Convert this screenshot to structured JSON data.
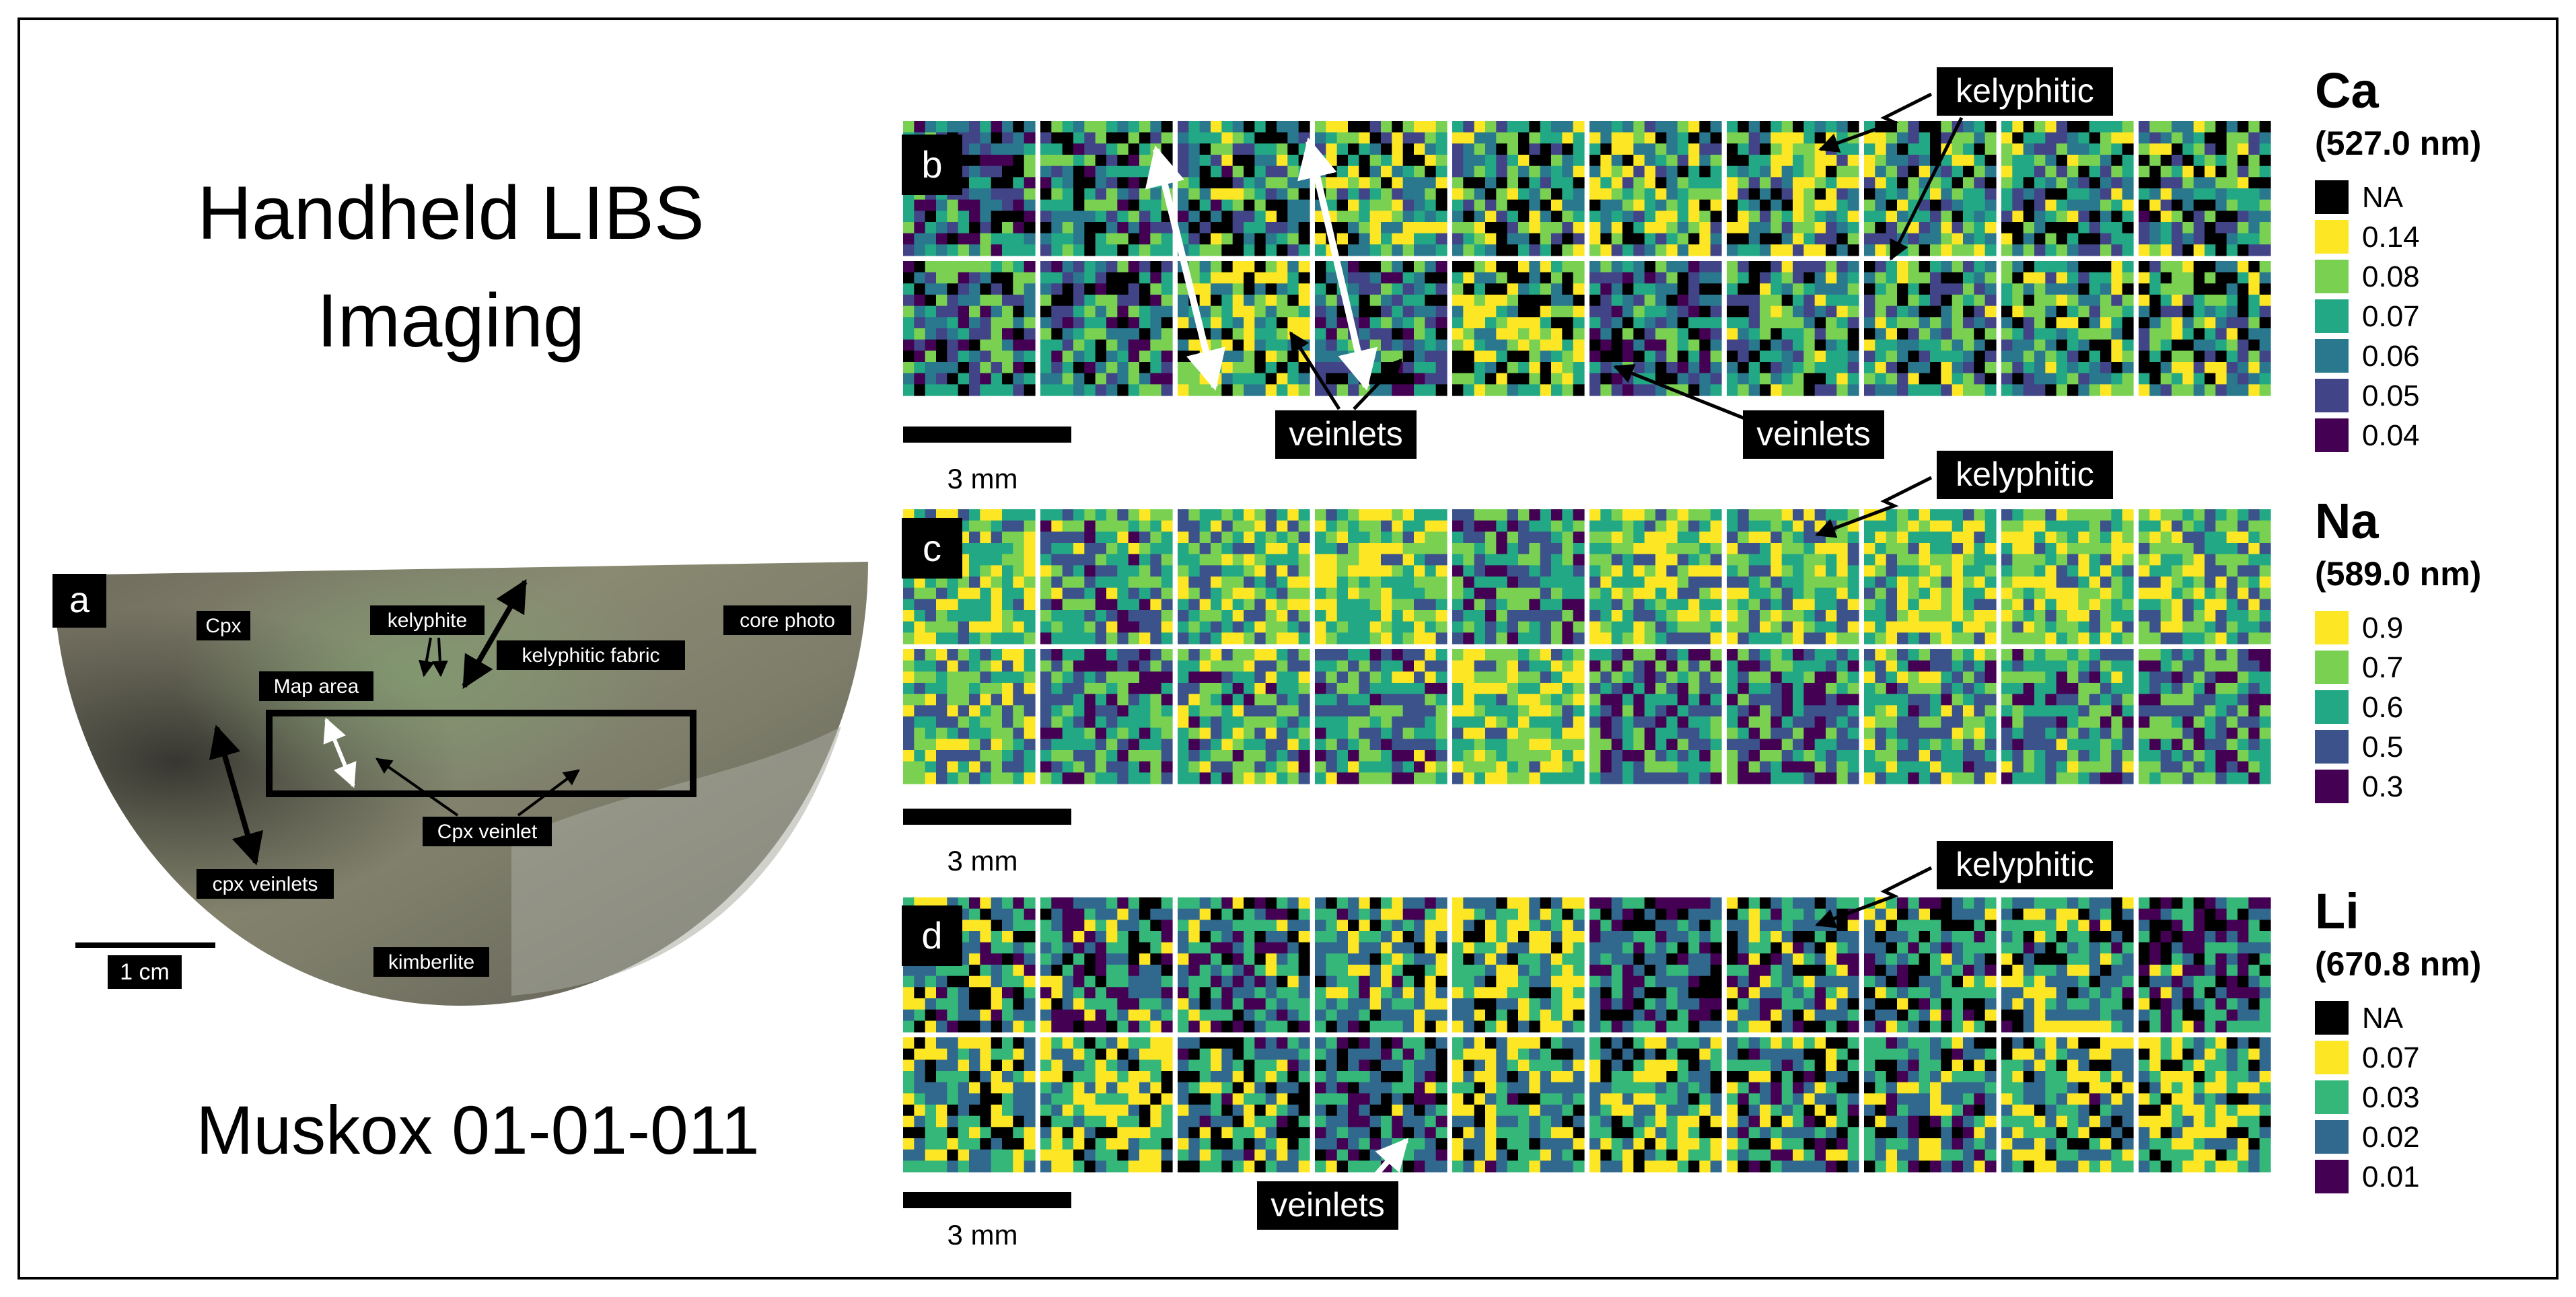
{
  "title_lines": [
    "Handheld LIBS",
    "Imaging"
  ],
  "sample_id": "Muskox 01-01-011",
  "panel_a": {
    "letter": "a",
    "labels": {
      "cpx": "Cpx",
      "kelyphite": "kelyphite",
      "kelyphitic_fabric": "kelyphitic fabric",
      "core_photo": "core photo",
      "map_area": "Map area",
      "cpx_veinlet": "Cpx veinlet",
      "cpx_veinlets": "cpx veinlets",
      "kimberlite": "kimberlite"
    },
    "scale": "1 cm"
  },
  "panels": [
    {
      "letter": "b",
      "element": "Ca",
      "wavelength": "(527.0 nm)",
      "scale": "3 mm",
      "has_na": true,
      "legend": [
        {
          "label": "NA",
          "color": "#000000"
        },
        {
          "label": "0.14",
          "color": "#fde725"
        },
        {
          "label": "0.08",
          "color": "#7ad151"
        },
        {
          "label": "0.07",
          "color": "#22a884"
        },
        {
          "label": "0.06",
          "color": "#2a788e"
        },
        {
          "label": "0.05",
          "color": "#414487"
        },
        {
          "label": "0.04",
          "color": "#440154"
        }
      ],
      "annotations": [
        {
          "text": "kelyphitic"
        },
        {
          "text": "veinlets"
        },
        {
          "text": "veinlets"
        }
      ]
    },
    {
      "letter": "c",
      "element": "Na",
      "wavelength": "(589.0 nm)",
      "scale": "3 mm",
      "has_na": false,
      "legend": [
        {
          "label": "0.9",
          "color": "#fde725"
        },
        {
          "label": "0.7",
          "color": "#7ad151"
        },
        {
          "label": "0.6",
          "color": "#22a884"
        },
        {
          "label": "0.5",
          "color": "#3b528b"
        },
        {
          "label": "0.3",
          "color": "#440154"
        }
      ],
      "annotations": [
        {
          "text": "kelyphitic"
        }
      ]
    },
    {
      "letter": "d",
      "element": "Li",
      "wavelength": "(670.8 nm)",
      "scale": "3 mm",
      "has_na": true,
      "legend": [
        {
          "label": "NA",
          "color": "#000000"
        },
        {
          "label": "0.07",
          "color": "#fde725"
        },
        {
          "label": "0.03",
          "color": "#35b779"
        },
        {
          "label": "0.02",
          "color": "#31688e"
        },
        {
          "label": "0.01",
          "color": "#440154"
        }
      ],
      "annotations": [
        {
          "text": "kelyphitic"
        },
        {
          "text": "veinlets"
        }
      ]
    }
  ]
}
